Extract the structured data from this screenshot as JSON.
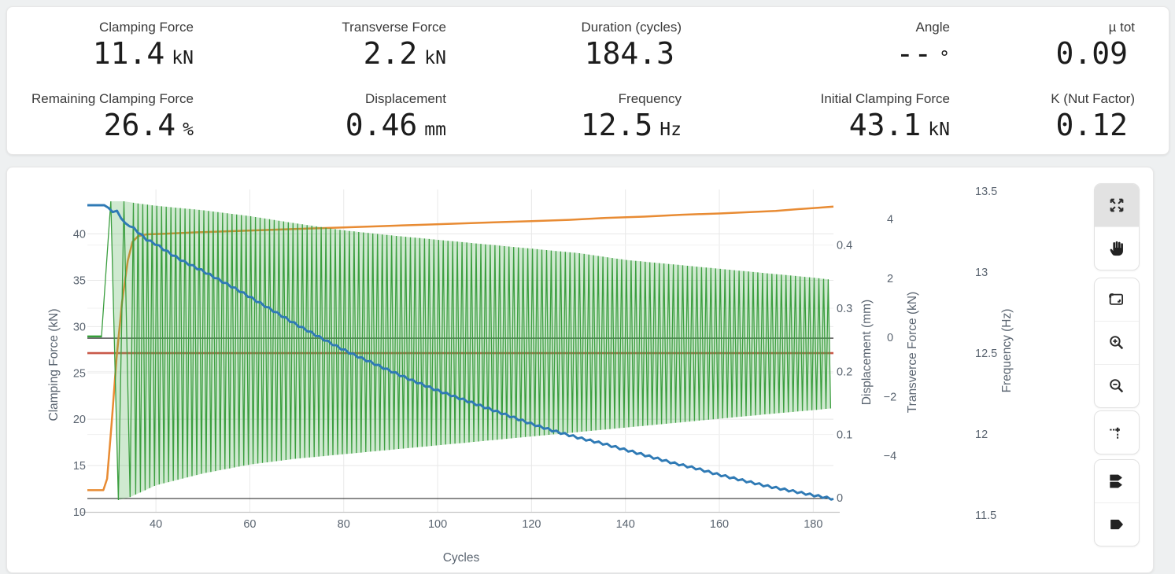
{
  "metrics": [
    {
      "label": "Clamping Force",
      "value": "11.4",
      "unit": "kN"
    },
    {
      "label": "Transverse Force",
      "value": "2.2",
      "unit": "kN"
    },
    {
      "label": "Duration (cycles)",
      "value": "184.3",
      "unit": ""
    },
    {
      "label": "Angle",
      "value": "--",
      "unit": "°"
    },
    {
      "label": "µ tot",
      "value": "0.09",
      "unit": ""
    },
    {
      "label": "Remaining Clamping Force",
      "value": "26.4",
      "unit": "%"
    },
    {
      "label": "Displacement",
      "value": "0.46",
      "unit": "mm"
    },
    {
      "label": "Frequency",
      "value": "12.5",
      "unit": "Hz"
    },
    {
      "label": "Initial Clamping Force",
      "value": "43.1",
      "unit": "kN"
    },
    {
      "label": "K (Nut Factor)",
      "value": "0.12",
      "unit": ""
    }
  ],
  "modebar": {
    "active": "autoscale",
    "buttons": [
      "autoscale",
      "pan",
      "box-zoom",
      "zoom-in",
      "zoom-out",
      "toggle-spikelines",
      "hover-compare",
      "hover-closest"
    ]
  },
  "chart_data": {
    "type": "line",
    "grid": true,
    "legend": "none",
    "x_axis": {
      "title": "Cycles",
      "range": [
        25.4,
        184.3
      ],
      "ticks": [
        40,
        60,
        80,
        100,
        120,
        140,
        160,
        180
      ]
    },
    "y_axes": {
      "clamping": {
        "title": "Clamping Force (kN)",
        "side": "left",
        "range": [
          10,
          44.8
        ],
        "ticks": [
          10,
          15,
          20,
          25,
          30,
          35,
          40
        ]
      },
      "displacement": {
        "title": "Displacement (mm)",
        "side": "right",
        "range": [
          -0.0224,
          0.488
        ],
        "ticks": [
          0,
          0.1,
          0.2,
          0.3,
          0.4
        ],
        "zeroline": true
      },
      "transverse": {
        "title": "Transverce Force (kN)",
        "side": "right",
        "range": [
          -5.9,
          5.0
        ],
        "ticks": [
          -4,
          -2,
          0,
          2,
          4
        ],
        "zeroline": true
      },
      "frequency": {
        "title": "Frequency (Hz)",
        "side": "right",
        "range": [
          11.52,
          13.51
        ],
        "ticks": [
          11.5,
          12,
          12.5,
          13,
          13.5
        ]
      }
    },
    "series": [
      {
        "name": "Frequency",
        "axis": "frequency",
        "color": "#c54a3a",
        "type": "constant",
        "value": 12.5,
        "x_range": [
          25.4,
          184.3
        ]
      },
      {
        "name": "Displacement",
        "axis": "displacement",
        "color": "#e88b33",
        "type": "line",
        "points": [
          [
            25.4,
            0.012
          ],
          [
            28.8,
            0.012
          ],
          [
            29.6,
            0.03
          ],
          [
            30.6,
            0.12
          ],
          [
            31.6,
            0.22
          ],
          [
            32.8,
            0.31
          ],
          [
            34,
            0.375
          ],
          [
            35,
            0.405
          ],
          [
            36.2,
            0.414
          ],
          [
            38,
            0.417
          ],
          [
            42,
            0.418
          ],
          [
            48,
            0.42
          ],
          [
            56,
            0.422
          ],
          [
            64,
            0.424
          ],
          [
            72,
            0.426
          ],
          [
            80,
            0.428
          ],
          [
            88,
            0.43
          ],
          [
            96,
            0.432
          ],
          [
            104,
            0.434
          ],
          [
            112,
            0.436
          ],
          [
            120,
            0.438
          ],
          [
            128,
            0.44
          ],
          [
            136,
            0.443
          ],
          [
            144,
            0.445
          ],
          [
            152,
            0.448
          ],
          [
            160,
            0.45
          ],
          [
            166,
            0.452
          ],
          [
            172,
            0.454
          ],
          [
            177,
            0.457
          ],
          [
            181,
            0.459
          ],
          [
            184.3,
            0.461
          ]
        ]
      },
      {
        "name": "Transverse Force",
        "axis": "transverse",
        "color": "#3b9e3f",
        "fill_color": "rgba(76,175,80,0.27)",
        "type": "oscillation",
        "flat_value": 0,
        "flat_range": [
          25.4,
          28.4
        ],
        "transient_vertices": [
          [
            28.4,
            0
          ],
          [
            30.4,
            4.6
          ],
          [
            32.0,
            -5.5
          ],
          [
            33.2,
            4.6
          ],
          [
            34.5,
            -5.4
          ]
        ],
        "oscillation_period_cycles": 1,
        "envelope_upper": [
          [
            35.2,
            4.55
          ],
          [
            40,
            4.45
          ],
          [
            50,
            4.3
          ],
          [
            60,
            4.1
          ],
          [
            70,
            3.85
          ],
          [
            80,
            3.62
          ],
          [
            90,
            3.45
          ],
          [
            100,
            3.3
          ],
          [
            110,
            3.15
          ],
          [
            120,
            3.0
          ],
          [
            130,
            2.85
          ],
          [
            140,
            2.62
          ],
          [
            150,
            2.47
          ],
          [
            160,
            2.32
          ],
          [
            170,
            2.17
          ],
          [
            180,
            2.02
          ],
          [
            183.9,
            1.95
          ]
        ],
        "envelope_lower": [
          [
            35.2,
            -5.35
          ],
          [
            40,
            -5.0
          ],
          [
            50,
            -4.6
          ],
          [
            60,
            -4.3
          ],
          [
            70,
            -4.1
          ],
          [
            80,
            -3.95
          ],
          [
            90,
            -3.8
          ],
          [
            100,
            -3.65
          ],
          [
            110,
            -3.5
          ],
          [
            120,
            -3.35
          ],
          [
            130,
            -3.2
          ],
          [
            140,
            -3.05
          ],
          [
            150,
            -2.9
          ],
          [
            160,
            -2.75
          ],
          [
            170,
            -2.6
          ],
          [
            180,
            -2.46
          ],
          [
            183.9,
            -2.4
          ]
        ]
      },
      {
        "name": "Clamping Force",
        "axis": "clamping",
        "color": "#2f7ab5",
        "type": "line",
        "jitter": 0.11,
        "points": [
          [
            25.4,
            43.1
          ],
          [
            29.2,
            43.1
          ],
          [
            29.8,
            42.9
          ],
          [
            30.6,
            42.3
          ],
          [
            31.6,
            42.6
          ],
          [
            33,
            41.3
          ],
          [
            34.5,
            40.9
          ],
          [
            36,
            40.3
          ],
          [
            38,
            39.4
          ],
          [
            40,
            38.9
          ],
          [
            43,
            37.9
          ],
          [
            46,
            37.0
          ],
          [
            50,
            36.0
          ],
          [
            54,
            34.9
          ],
          [
            58,
            33.8
          ],
          [
            62,
            32.6
          ],
          [
            66,
            31.4
          ],
          [
            70,
            30.2
          ],
          [
            74,
            29.1
          ],
          [
            78,
            28.0
          ],
          [
            82,
            27.0
          ],
          [
            86,
            26.1
          ],
          [
            90,
            25.2
          ],
          [
            95,
            24.1
          ],
          [
            100,
            23.1
          ],
          [
            105,
            22.2
          ],
          [
            110,
            21.3
          ],
          [
            115,
            20.4
          ],
          [
            120,
            19.5
          ],
          [
            125,
            18.7
          ],
          [
            130,
            18.0
          ],
          [
            135,
            17.4
          ],
          [
            140,
            16.7
          ],
          [
            145,
            16.0
          ],
          [
            150,
            15.3
          ],
          [
            155,
            14.7
          ],
          [
            160,
            14.0
          ],
          [
            165,
            13.4
          ],
          [
            170,
            12.8
          ],
          [
            175,
            12.3
          ],
          [
            180,
            11.8
          ],
          [
            184.3,
            11.4
          ]
        ]
      }
    ]
  }
}
